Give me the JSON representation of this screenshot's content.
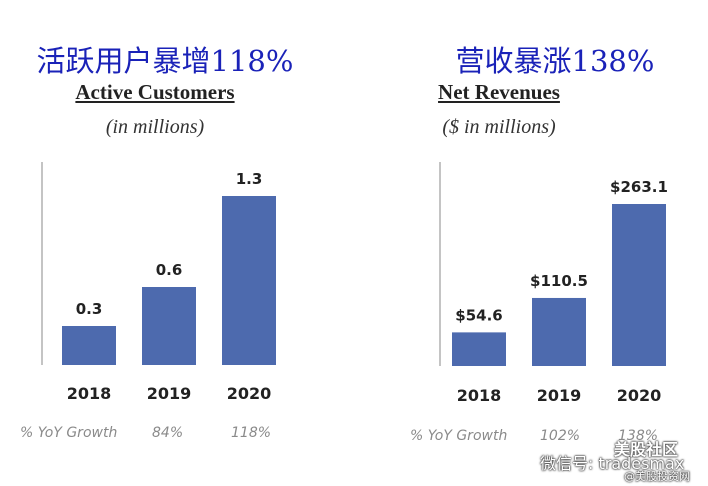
{
  "colors": {
    "bar": "#4d6aae",
    "title_cn": "#1a22b8",
    "axis": "#888888"
  },
  "chart_data": [
    {
      "type": "bar",
      "title": "活跃用户暴增118%",
      "subtitle": "Active Customers",
      "unit_note": "(in millions)",
      "categories": [
        "2018",
        "2019",
        "2020"
      ],
      "values": [
        0.3,
        0.6,
        1.3
      ],
      "value_labels": [
        "0.3",
        "0.6",
        "1.3"
      ],
      "growth_label": "% YoY Growth",
      "growth_values": [
        "84%",
        "118%"
      ],
      "grid": false
    },
    {
      "type": "bar",
      "title": "营收暴涨138%",
      "subtitle": "Net Revenues",
      "unit_note": "($ in millions)",
      "categories": [
        "2018",
        "2019",
        "2020"
      ],
      "values": [
        54.6,
        110.5,
        263.1
      ],
      "value_labels": [
        "$54.6",
        "$110.5",
        "$263.1"
      ],
      "growth_label": "% YoY Growth",
      "growth_values": [
        "102%",
        "138%"
      ],
      "grid": false
    }
  ],
  "watermark": {
    "line1": "美股社区",
    "line2": "微信号: tradesmax",
    "line3": "@美股投资网"
  }
}
